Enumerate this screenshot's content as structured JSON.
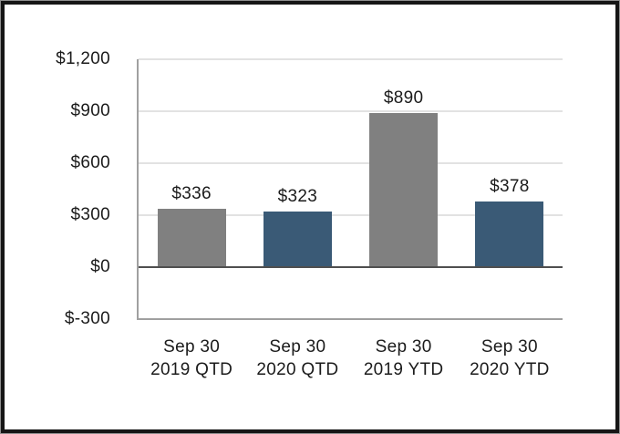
{
  "chart_data": {
    "type": "bar",
    "title": "",
    "xlabel": "",
    "ylabel": "",
    "categories": [
      "Sep 30 2019 QTD",
      "Sep 30 2020 QTD",
      "Sep 30 2019 YTD",
      "Sep 30 2020 YTD"
    ],
    "category_lines": [
      [
        "Sep 30",
        "2019 QTD"
      ],
      [
        "Sep 30",
        "2020 QTD"
      ],
      [
        "Sep 30",
        "2019 YTD"
      ],
      [
        "Sep 30",
        "2020 YTD"
      ]
    ],
    "values": [
      336,
      323,
      890,
      378
    ],
    "value_labels": [
      "$336",
      "$323",
      "$890",
      "$378"
    ],
    "bar_colors": [
      "#808080",
      "#3A5A76",
      "#808080",
      "#3A5A76"
    ],
    "ylim": [
      -300,
      1200
    ],
    "ytick_step": 300,
    "yticks": [
      1200,
      900,
      600,
      300,
      0,
      -300
    ],
    "ytick_labels": [
      "$1,200",
      "$900",
      "$600",
      "$300",
      "$0",
      "$-300"
    ],
    "grid": "horizontal",
    "legend": "none",
    "colors": {
      "bar_gray": "#808080",
      "bar_blue": "#3A5A76",
      "gridline": "#E2E2E2",
      "zero_line": "#4F4F4F",
      "axis_line": "#A0A0A0",
      "text": "#1B1B1B",
      "frame_border": "#161616",
      "background": "#FFFFFF"
    }
  }
}
